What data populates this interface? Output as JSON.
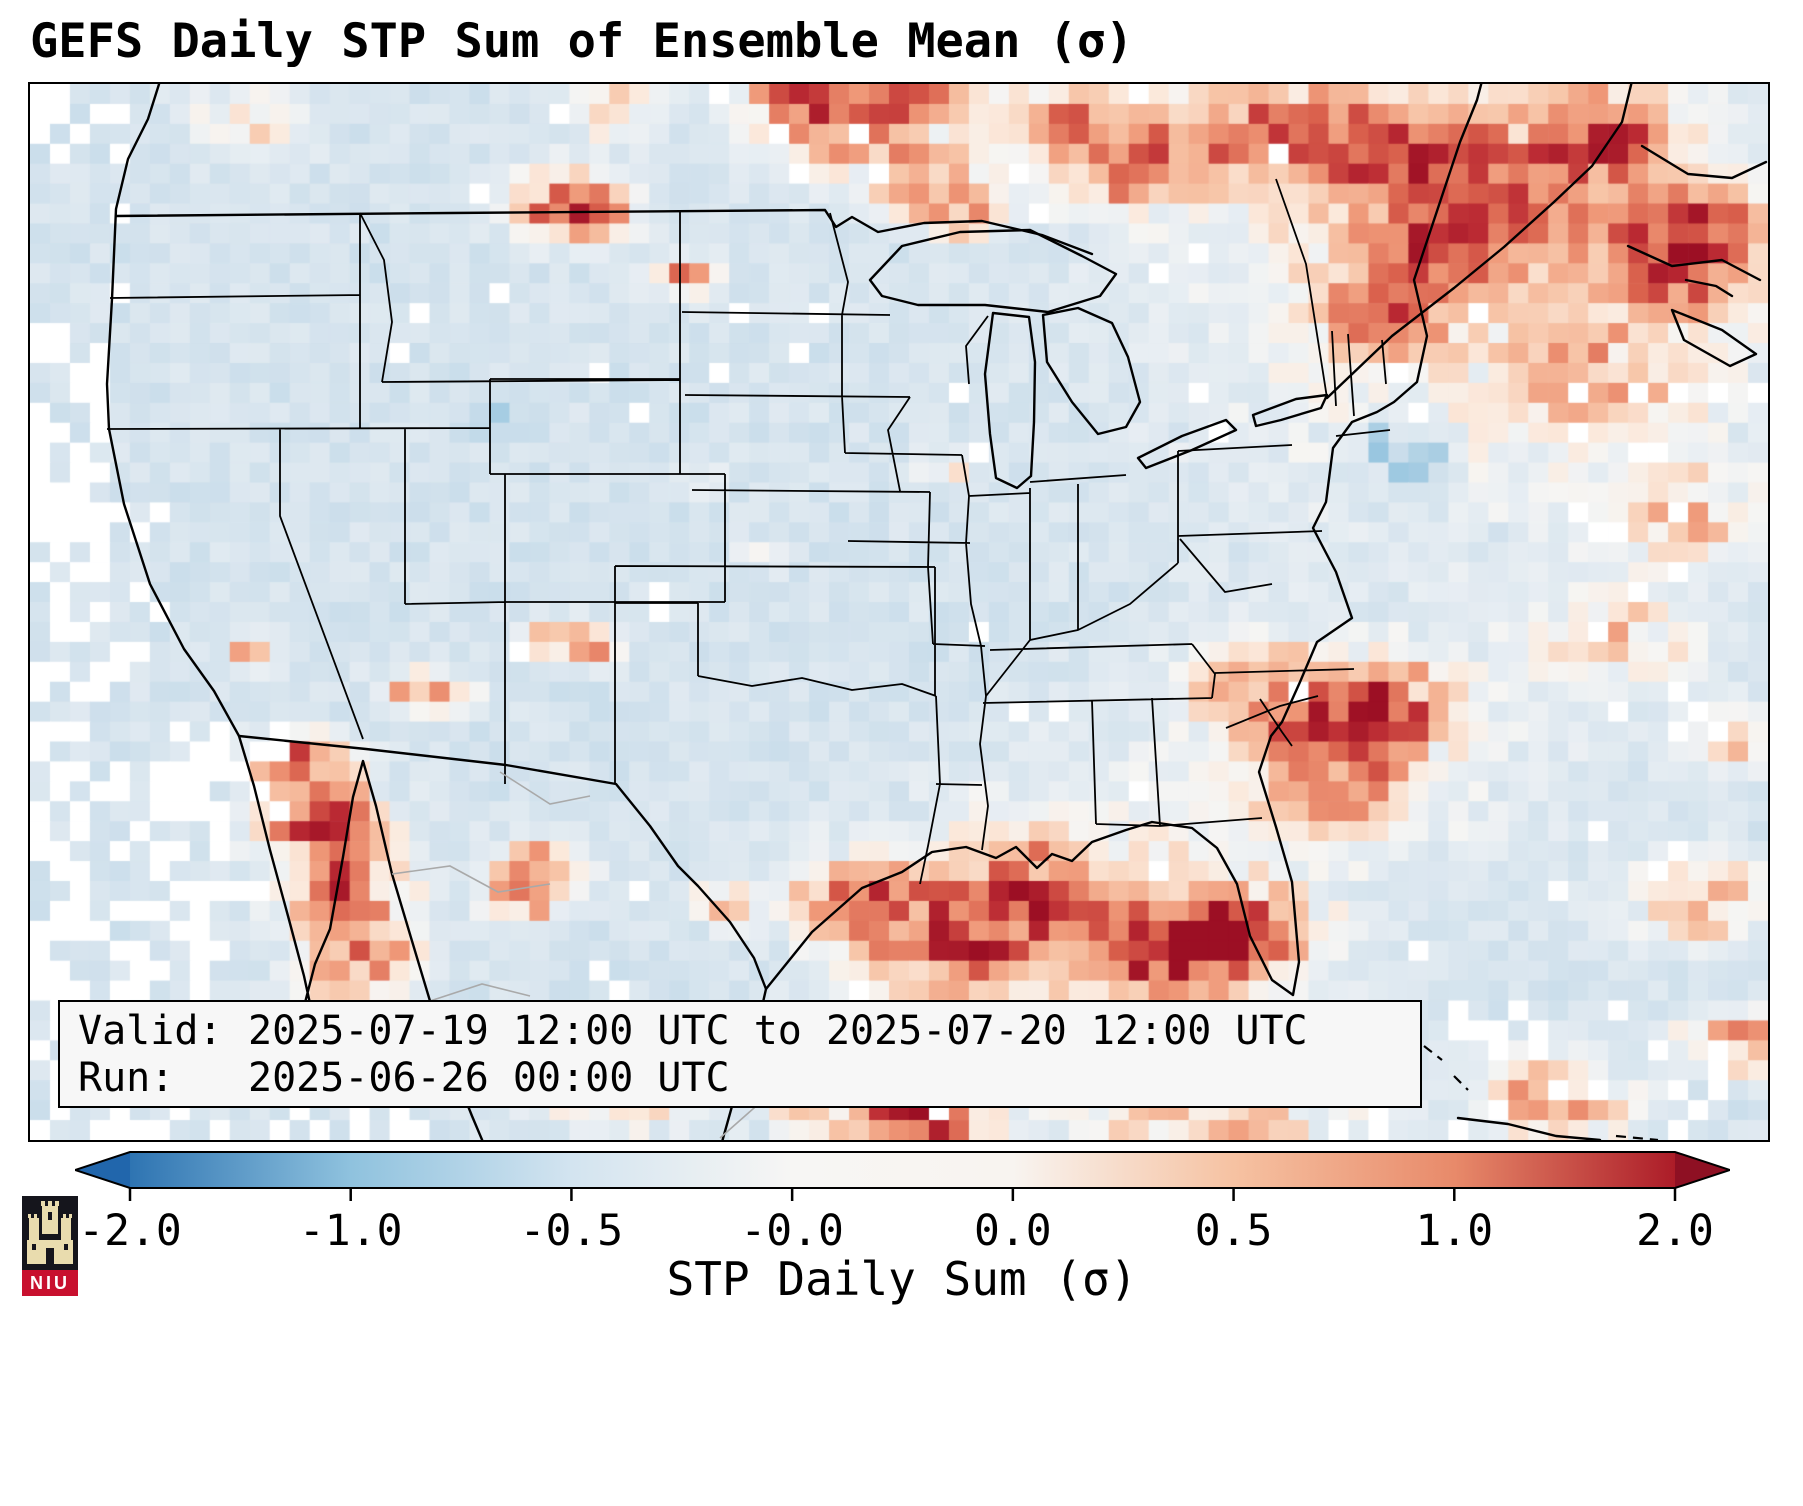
{
  "title": "GEFS Daily STP Sum of Ensemble Mean (σ)",
  "info_box": {
    "line1_label": "Valid:",
    "line1_value": "2025-07-19 12:00 UTC to 2025-07-20 12:00 UTC",
    "line2_label": "Run:",
    "line2_value": "2025-06-26 00:00 UTC"
  },
  "colorbar": {
    "label": "STP Daily Sum (σ)",
    "ticks": [
      "-2.0",
      "-1.0",
      "-0.5",
      "-0.0",
      "0.0",
      "0.5",
      "1.0",
      "2.0"
    ],
    "gradient_stops": [
      "#2e74b2",
      "#8fc2de",
      "#d3e4f0",
      "#f7f6f4",
      "#f8f4f0",
      "#f6c2a2",
      "#e88a6a",
      "#ac1c28"
    ],
    "left_extend_color": "#2166ac",
    "right_extend_color": "#8e1023"
  },
  "logo": {
    "text": "NIU"
  },
  "chart_data": {
    "type": "heatmap",
    "title": "GEFS Daily STP Sum of Ensemble Mean (σ)",
    "variable": "STP Daily Sum (σ)",
    "valid_period": "2025-07-19 12:00 UTC to 2025-07-20 12:00 UTC",
    "model_run": "2025-06-26 00:00 UTC",
    "map_extent": "CONUS with southern Canada, northern Mexico, western Atlantic and Gulf of Mexico",
    "colorbar": {
      "ticks": [
        -2.0,
        -1.0,
        -0.5,
        -0.0,
        0.0,
        0.5,
        1.0,
        2.0
      ],
      "min": -2.0,
      "max": 2.0,
      "colormap": "blue-white-red (RdBu_r style)",
      "extend": "both"
    },
    "grid": {
      "cols": 87,
      "rows": 53,
      "seed": 20250719,
      "base": -0.4,
      "noise": 0.14,
      "speckle_white_prob": 0.012,
      "stops": [
        [
          -2.0,
          "#2166ac"
        ],
        [
          -1.0,
          "#8ec1dd"
        ],
        [
          -0.5,
          "#cfe0ec"
        ],
        [
          -0.15,
          "#e8eef3"
        ],
        [
          0.0,
          "#f6f5f3"
        ],
        [
          0.2,
          "#fbe9dc"
        ],
        [
          0.5,
          "#f7c5a8"
        ],
        [
          0.9,
          "#ef9878"
        ],
        [
          1.3,
          "#d9604c"
        ],
        [
          1.7,
          "#bb2a33"
        ],
        [
          2.2,
          "#9c0f24"
        ]
      ],
      "hotspots": [
        [
          0.307,
          0.109,
          0.03,
          1.6
        ],
        [
          0.322,
          0.125,
          0.022,
          1.2
        ],
        [
          0.374,
          0.184,
          0.018,
          1.3
        ],
        [
          0.33,
          0.02,
          0.03,
          0.7
        ],
        [
          0.443,
          0.009,
          0.04,
          1.0
        ],
        [
          0.471,
          0.033,
          0.045,
          1.3
        ],
        [
          0.515,
          0.005,
          0.03,
          1.2
        ],
        [
          0.517,
          0.09,
          0.035,
          1.4
        ],
        [
          0.537,
          0.123,
          0.02,
          1.1
        ],
        [
          0.592,
          0.033,
          0.04,
          1.0
        ],
        [
          0.62,
          0.09,
          0.03,
          0.8
        ],
        [
          0.649,
          0.061,
          0.05,
          1.0
        ],
        [
          0.73,
          0.043,
          0.05,
          1.2
        ],
        [
          0.799,
          0.08,
          0.045,
          1.4
        ],
        [
          0.8,
          0.08,
          0.12,
          0.6
        ],
        [
          0.87,
          0.12,
          0.04,
          1.1
        ],
        [
          0.902,
          0.052,
          0.05,
          1.5
        ],
        [
          0.945,
          0.18,
          0.045,
          1.3
        ],
        [
          0.96,
          0.137,
          0.04,
          1.4
        ],
        [
          0.805,
          0.166,
          0.04,
          1.5
        ],
        [
          0.776,
          0.222,
          0.035,
          1.2
        ],
        [
          0.85,
          0.25,
          0.18,
          0.45
        ],
        [
          0.793,
          0.35,
          0.025,
          -0.9
        ],
        [
          0.902,
          0.279,
          0.05,
          0.9
        ],
        [
          0.948,
          0.411,
          0.04,
          1.0
        ],
        [
          0.914,
          0.525,
          0.04,
          0.9
        ],
        [
          0.982,
          0.62,
          0.03,
          1.1
        ],
        [
          0.385,
          0.38,
          0.012,
          0.9
        ],
        [
          0.42,
          0.45,
          0.01,
          0.8
        ],
        [
          0.525,
          0.365,
          0.015,
          0.7
        ],
        [
          0.701,
          0.563,
          0.04,
          1.0
        ],
        [
          0.753,
          0.615,
          0.045,
          1.5
        ],
        [
          0.782,
          0.582,
          0.03,
          1.2
        ],
        [
          0.78,
          0.62,
          0.1,
          0.5
        ],
        [
          0.747,
          0.676,
          0.03,
          1.1
        ],
        [
          0.695,
          0.799,
          0.035,
          1.7
        ],
        [
          0.661,
          0.828,
          0.04,
          1.8
        ],
        [
          0.62,
          0.78,
          0.12,
          0.6
        ],
        [
          0.586,
          0.771,
          0.05,
          1.4
        ],
        [
          0.529,
          0.809,
          0.05,
          1.7
        ],
        [
          0.477,
          0.771,
          0.04,
          1.3
        ],
        [
          0.483,
          0.951,
          0.05,
          1.5
        ],
        [
          0.52,
          0.985,
          0.03,
          1.6
        ],
        [
          0.68,
          0.97,
          0.08,
          0.9
        ],
        [
          0.339,
          0.941,
          0.04,
          1.3
        ],
        [
          0.155,
          0.639,
          0.025,
          1.7
        ],
        [
          0.167,
          0.695,
          0.035,
          1.9
        ],
        [
          0.181,
          0.762,
          0.035,
          1.8
        ],
        [
          0.19,
          0.828,
          0.03,
          1.7
        ],
        [
          0.172,
          0.894,
          0.03,
          1.5
        ],
        [
          0.129,
          0.539,
          0.015,
          1.3
        ],
        [
          0.224,
          0.572,
          0.02,
          1.2
        ],
        [
          0.244,
          0.582,
          0.015,
          1.0
        ],
        [
          0.305,
          0.525,
          0.018,
          1.3
        ],
        [
          0.328,
          0.53,
          0.015,
          1.1
        ],
        [
          0.293,
          0.743,
          0.025,
          1.5
        ],
        [
          0.282,
          0.776,
          0.02,
          1.2
        ],
        [
          0.402,
          0.776,
          0.018,
          1.2
        ],
        [
          0.879,
          0.96,
          0.04,
          1.2
        ],
        [
          0.96,
          0.771,
          0.04,
          1.1
        ],
        [
          0.985,
          0.905,
          0.03,
          1.3
        ],
        [
          0.264,
          0.317,
          0.015,
          -0.5
        ],
        [
          0.126,
          0.033,
          0.03,
          0.8
        ]
      ],
      "white_rects": [
        [
          0.0,
          0.0,
          0.06,
          0.12,
          0.35
        ],
        [
          0.0,
          0.22,
          0.05,
          0.64,
          0.55
        ],
        [
          0.0,
          0.64,
          0.11,
          0.92,
          0.5
        ],
        [
          0.0,
          0.88,
          0.23,
          1.0,
          0.45
        ],
        [
          0.035,
          0.38,
          0.085,
          0.56,
          0.35
        ],
        [
          0.08,
          0.6,
          0.145,
          0.8,
          0.3
        ],
        [
          0.74,
          0.87,
          1.0,
          1.0,
          0.15
        ],
        [
          0.88,
          0.25,
          1.0,
          0.75,
          0.07
        ]
      ]
    }
  }
}
